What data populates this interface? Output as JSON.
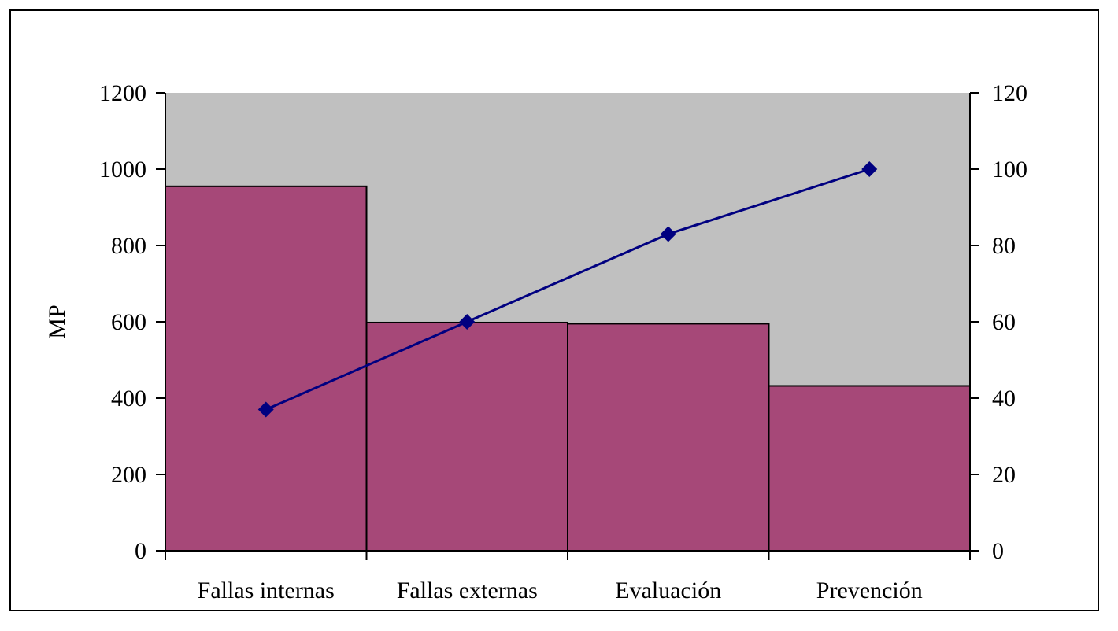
{
  "chart_data": {
    "type": "bar",
    "title": "",
    "categories": [
      "Fallas internas",
      "Fallas externas",
      "Evaluación",
      "Prevención"
    ],
    "series": [
      {
        "type": "bar",
        "axis": "left",
        "values": [
          955,
          598,
          595,
          432
        ]
      },
      {
        "type": "line",
        "axis": "right",
        "values": [
          37,
          60,
          83,
          100
        ]
      }
    ],
    "ylabel": "MP",
    "y2label": "",
    "ylim": [
      0,
      1200
    ],
    "y2lim": [
      0,
      120
    ],
    "yticks": [
      "0",
      "200",
      "400",
      "600",
      "800",
      "1000",
      "1200"
    ],
    "y2ticks": [
      "0",
      "20",
      "40",
      "60",
      "80",
      "100",
      "120"
    ],
    "grid": false,
    "legend": "none",
    "colors": {
      "plot_background": "#c0c0c0",
      "bar_fill": "#a64878",
      "bar_edge": "#000000",
      "line": "#000080",
      "marker": "#000080"
    }
  }
}
